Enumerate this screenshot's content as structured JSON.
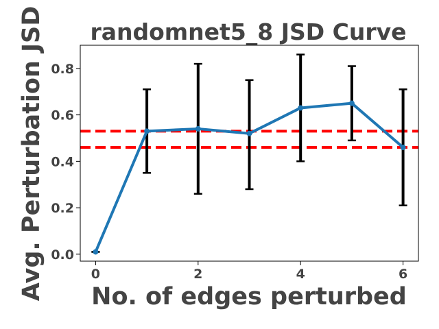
{
  "chart_data": {
    "type": "line",
    "title": "randomnet5_8 JSD Curve",
    "xlabel": "No. of edges perturbed",
    "ylabel": "Avg. Perturbation JSD",
    "xlim": [
      -0.3,
      6.3
    ],
    "ylim": [
      -0.03,
      0.9
    ],
    "xticks": [
      "0",
      "2",
      "4",
      "6"
    ],
    "yticks": [
      "0.0",
      "0.2",
      "0.4",
      "0.6",
      "0.8"
    ],
    "grid": false,
    "series": [
      {
        "color": "#1f77b4",
        "x": [
          0,
          1,
          2,
          3,
          4,
          5,
          6
        ],
        "y": [
          0.01,
          0.53,
          0.54,
          0.52,
          0.63,
          0.65,
          0.46
        ],
        "err_low": [
          0.01,
          0.35,
          0.26,
          0.28,
          0.4,
          0.49,
          0.21
        ],
        "err_high": [
          0.01,
          0.71,
          0.82,
          0.75,
          0.86,
          0.81,
          0.71
        ]
      }
    ],
    "reference_lines": [
      {
        "y": 0.53,
        "color": "#ff0000",
        "style": "dashed"
      },
      {
        "y": 0.46,
        "color": "#ff0000",
        "style": "dashed"
      }
    ]
  }
}
